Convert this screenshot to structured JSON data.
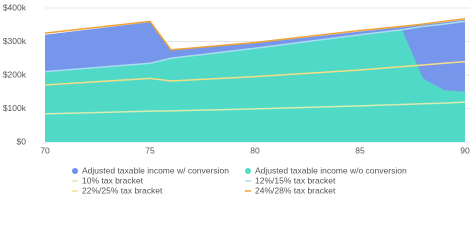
{
  "chart_data": {
    "type": "area",
    "x": [
      70,
      75,
      76,
      80,
      85,
      87,
      88,
      89,
      90
    ],
    "xlim": [
      70,
      90
    ],
    "xticks": [
      70,
      75,
      80,
      85,
      90
    ],
    "ylim": [
      0,
      400000
    ],
    "yticks": [
      {
        "value": 0,
        "label": "$0"
      },
      {
        "value": 100000,
        "label": "$100k"
      },
      {
        "value": 200000,
        "label": "$200k"
      },
      {
        "value": 300000,
        "label": "$300k"
      },
      {
        "value": 400000,
        "label": "$400k"
      }
    ],
    "grid": true,
    "series": [
      {
        "name": "Adjusted taxable income w/ conversion",
        "type": "area",
        "color": "#6f90ea",
        "values": [
          320000,
          358000,
          275000,
          295000,
          330000,
          343000,
          350000,
          357000,
          365000
        ]
      },
      {
        "name": "Adjusted taxable income w/o conversion",
        "type": "area",
        "color": "#4fdcc6",
        "values": [
          210000,
          235000,
          250000,
          280000,
          320000,
          335000,
          190000,
          155000,
          150000
        ]
      },
      {
        "name": "10% tax bracket",
        "type": "line",
        "color": "#d6ecb0",
        "values": [
          84000,
          92000,
          93000,
          99000,
          108000,
          112000,
          114000,
          116000,
          119000
        ]
      },
      {
        "name": "12%/15% tax bracket",
        "type": "line",
        "color": "#a9dcef",
        "values": [
          210000,
          235000,
          250000,
          280000,
          320000,
          335000,
          345000,
          352000,
          360000
        ]
      },
      {
        "name": "22%/25% tax bracket",
        "type": "line",
        "color": "#f3df86",
        "values": [
          170000,
          190000,
          182000,
          195000,
          215000,
          225000,
          230000,
          235000,
          240000
        ]
      },
      {
        "name": "24%/28% tax bracket",
        "type": "line",
        "color": "#f0a233",
        "values": [
          325000,
          360000,
          275000,
          297000,
          333000,
          345000,
          352000,
          360000,
          368000
        ]
      }
    ]
  }
}
